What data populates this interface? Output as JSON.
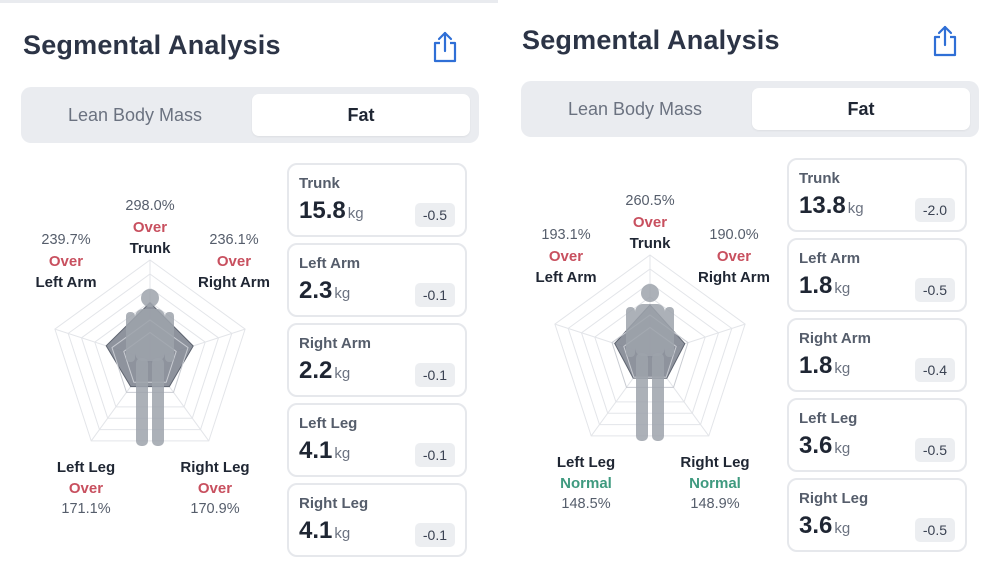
{
  "panels": [
    {
      "title": "Segmental Analysis",
      "share_icon": "share-icon",
      "toggle": {
        "lean_label": "Lean Body Mass",
        "fat_label": "Fat",
        "selected": "Fat"
      },
      "radar_labels": {
        "trunk": {
          "pct": "298.0%",
          "status": "Over",
          "name": "Trunk"
        },
        "left_arm": {
          "pct": "239.7%",
          "status": "Over",
          "name": "Left Arm"
        },
        "right_arm": {
          "pct": "236.1%",
          "status": "Over",
          "name": "Right Arm"
        },
        "left_leg": {
          "name": "Left Leg",
          "status": "Over",
          "pct": "171.1%"
        },
        "right_leg": {
          "name": "Right Leg",
          "status": "Over",
          "pct": "170.9%"
        }
      },
      "radar_values": {
        "trunk": 298.0,
        "right_arm": 236.1,
        "right_leg": 170.9,
        "left_leg": 171.1,
        "left_arm": 239.7
      },
      "cards": [
        {
          "name": "Trunk",
          "value": "15.8",
          "unit": "kg",
          "delta": "-0.5"
        },
        {
          "name": "Left Arm",
          "value": "2.3",
          "unit": "kg",
          "delta": "-0.1"
        },
        {
          "name": "Right Arm",
          "value": "2.2",
          "unit": "kg",
          "delta": "-0.1"
        },
        {
          "name": "Left Leg",
          "value": "4.1",
          "unit": "kg",
          "delta": "-0.1"
        },
        {
          "name": "Right Leg",
          "value": "4.1",
          "unit": "kg",
          "delta": "-0.1"
        }
      ]
    },
    {
      "title": "Segmental Analysis",
      "share_icon": "share-icon",
      "toggle": {
        "lean_label": "Lean Body Mass",
        "fat_label": "Fat",
        "selected": "Fat"
      },
      "radar_labels": {
        "trunk": {
          "pct": "260.5%",
          "status": "Over",
          "name": "Trunk"
        },
        "left_arm": {
          "pct": "193.1%",
          "status": "Over",
          "name": "Left Arm"
        },
        "right_arm": {
          "pct": "190.0%",
          "status": "Over",
          "name": "Right Arm"
        },
        "left_leg": {
          "name": "Left Leg",
          "status": "Normal",
          "pct": "148.5%"
        },
        "right_leg": {
          "name": "Right Leg",
          "status": "Normal",
          "pct": "148.9%"
        }
      },
      "radar_values": {
        "trunk": 260.5,
        "right_arm": 190.0,
        "right_leg": 148.9,
        "left_leg": 148.5,
        "left_arm": 193.1
      },
      "cards": [
        {
          "name": "Trunk",
          "value": "13.8",
          "unit": "kg",
          "delta": "-2.0"
        },
        {
          "name": "Left Arm",
          "value": "1.8",
          "unit": "kg",
          "delta": "-0.5"
        },
        {
          "name": "Right Arm",
          "value": "1.8",
          "unit": "kg",
          "delta": "-0.4"
        },
        {
          "name": "Left Leg",
          "value": "3.6",
          "unit": "kg",
          "delta": "-0.5"
        },
        {
          "name": "Right Leg",
          "value": "3.6",
          "unit": "kg",
          "delta": "-0.5"
        }
      ]
    }
  ],
  "colors": {
    "over": "#c8505f",
    "normal": "#3f9a7f",
    "radar_fill": "#7a808c",
    "grid": "#e3e5e9"
  }
}
